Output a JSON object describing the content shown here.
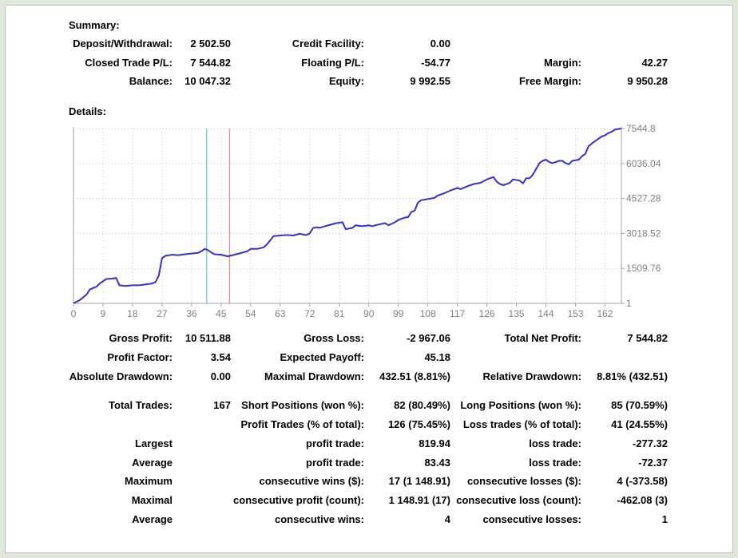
{
  "summary": {
    "heading": "Summary:",
    "rows": [
      [
        {
          "label": "Deposit/Withdrawal:",
          "value": "2 502.50"
        },
        {
          "label": "Credit Facility:",
          "value": "0.00"
        },
        {
          "label": "",
          "value": ""
        }
      ],
      [
        {
          "label": "Closed Trade P/L:",
          "value": "7 544.82"
        },
        {
          "label": "Floating P/L:",
          "value": "-54.77"
        },
        {
          "label": "Margin:",
          "value": "42.27"
        }
      ],
      [
        {
          "label": "Balance:",
          "value": "10 047.32"
        },
        {
          "label": "Equity:",
          "value": "9 992.55"
        },
        {
          "label": "Free Margin:",
          "value": "9 950.28"
        }
      ]
    ]
  },
  "details": {
    "heading": "Details:",
    "rows": [
      [
        {
          "label": "Gross Profit:",
          "value": "10 511.88"
        },
        {
          "label": "Gross Loss:",
          "value": "-2 967.06"
        },
        {
          "label": "Total Net Profit:",
          "value": "7 544.82"
        }
      ],
      [
        {
          "label": "Profit Factor:",
          "value": "3.54"
        },
        {
          "label": "Expected Payoff:",
          "value": "45.18"
        },
        {
          "label": "",
          "value": ""
        }
      ],
      [
        {
          "label": "Absolute Drawdown:",
          "value": "0.00"
        },
        {
          "label": "Maximal Drawdown:",
          "value": "432.51 (8.81%)"
        },
        {
          "label": "Relative Drawdown:",
          "value": "8.81% (432.51)"
        }
      ],
      [
        {
          "label": "Total Trades:",
          "value": "167"
        },
        {
          "label": "Short Positions (won %):",
          "value": "82 (80.49%)"
        },
        {
          "label": "Long Positions (won %):",
          "value": "85 (70.59%)"
        }
      ],
      [
        {
          "label": "",
          "value": ""
        },
        {
          "label": "Profit Trades (% of total):",
          "value": "126 (75.45%)"
        },
        {
          "label": "Loss trades (% of total):",
          "value": "41 (24.55%)"
        }
      ],
      [
        {
          "label": "Largest",
          "value": ""
        },
        {
          "label": "profit trade:",
          "value": "819.94"
        },
        {
          "label": "loss trade:",
          "value": "-277.32"
        }
      ],
      [
        {
          "label": "Average",
          "value": ""
        },
        {
          "label": "profit trade:",
          "value": "83.43"
        },
        {
          "label": "loss trade:",
          "value": "-72.37"
        }
      ],
      [
        {
          "label": "Maximum",
          "value": ""
        },
        {
          "label": "consecutive wins ($):",
          "value": "17 (1 148.91)"
        },
        {
          "label": "consecutive losses ($):",
          "value": "4 (-373.58)"
        }
      ],
      [
        {
          "label": "Maximal",
          "value": ""
        },
        {
          "label": "consecutive profit (count):",
          "value": "1 148.91 (17)"
        },
        {
          "label": "consecutive loss (count):",
          "value": "-462.08 (3)"
        }
      ],
      [
        {
          "label": "Average",
          "value": ""
        },
        {
          "label": "consecutive wins:",
          "value": "4"
        },
        {
          "label": "consecutive losses:",
          "value": "1"
        }
      ]
    ]
  },
  "chart_data": {
    "type": "line",
    "xlim": [
      0,
      167
    ],
    "ylim": [
      1,
      7544.8
    ],
    "x_ticks": [
      "0",
      "9",
      "18",
      "27",
      "36",
      "45",
      "54",
      "63",
      "72",
      "81",
      "90",
      "99",
      "108",
      "117",
      "126",
      "135",
      "144",
      "153",
      "162"
    ],
    "y_ticks": [
      "7544.8",
      "6036.04",
      "4527.28",
      "3018.52",
      "1509.76",
      "1"
    ],
    "line_color": "#3333cc",
    "markers": [
      {
        "x": 40.6,
        "color": "#69c3dd"
      },
      {
        "x": 47.6,
        "color": "#e08a8a"
      }
    ],
    "series": [
      {
        "points": [
          [
            0,
            1
          ],
          [
            2,
            150
          ],
          [
            4,
            380
          ],
          [
            5,
            600
          ],
          [
            7,
            720
          ],
          [
            8,
            860
          ],
          [
            10,
            1050
          ],
          [
            12,
            1070
          ],
          [
            13,
            1100
          ],
          [
            14,
            780
          ],
          [
            16,
            750
          ],
          [
            18,
            780
          ],
          [
            20,
            780
          ],
          [
            22,
            820
          ],
          [
            24,
            860
          ],
          [
            25,
            920
          ],
          [
            26,
            1200
          ],
          [
            27,
            1950
          ],
          [
            28,
            2050
          ],
          [
            30,
            2100
          ],
          [
            32,
            2080
          ],
          [
            34,
            2120
          ],
          [
            36,
            2150
          ],
          [
            38,
            2180
          ],
          [
            39,
            2250
          ],
          [
            40,
            2350
          ],
          [
            41,
            2300
          ],
          [
            42,
            2200
          ],
          [
            43,
            2120
          ],
          [
            45,
            2100
          ],
          [
            47,
            2030
          ],
          [
            49,
            2100
          ],
          [
            51,
            2170
          ],
          [
            53,
            2250
          ],
          [
            54,
            2350
          ],
          [
            56,
            2350
          ],
          [
            58,
            2420
          ],
          [
            59,
            2550
          ],
          [
            61,
            2900
          ],
          [
            63,
            2930
          ],
          [
            65,
            2950
          ],
          [
            67,
            2930
          ],
          [
            69,
            3000
          ],
          [
            70,
            2970
          ],
          [
            71,
            2950
          ],
          [
            72,
            3020
          ],
          [
            73,
            3250
          ],
          [
            74,
            3280
          ],
          [
            75,
            3260
          ],
          [
            76,
            3300
          ],
          [
            78,
            3380
          ],
          [
            80,
            3460
          ],
          [
            82,
            3500
          ],
          [
            83,
            3200
          ],
          [
            85,
            3260
          ],
          [
            86,
            3370
          ],
          [
            88,
            3330
          ],
          [
            90,
            3370
          ],
          [
            91,
            3330
          ],
          [
            92,
            3370
          ],
          [
            93,
            3400
          ],
          [
            95,
            3460
          ],
          [
            96,
            3370
          ],
          [
            98,
            3500
          ],
          [
            99,
            3600
          ],
          [
            101,
            3700
          ],
          [
            102,
            3720
          ],
          [
            103,
            3950
          ],
          [
            104,
            4000
          ],
          [
            105,
            4350
          ],
          [
            106,
            4450
          ],
          [
            108,
            4500
          ],
          [
            110,
            4550
          ],
          [
            111,
            4650
          ],
          [
            113,
            4750
          ],
          [
            115,
            4880
          ],
          [
            117,
            4980
          ],
          [
            118,
            4930
          ],
          [
            120,
            5050
          ],
          [
            122,
            5150
          ],
          [
            124,
            5200
          ],
          [
            126,
            5350
          ],
          [
            128,
            5450
          ],
          [
            129,
            5250
          ],
          [
            130,
            5150
          ],
          [
            131,
            5100
          ],
          [
            133,
            5200
          ],
          [
            134,
            5350
          ],
          [
            136,
            5300
          ],
          [
            137,
            5180
          ],
          [
            138,
            5400
          ],
          [
            139,
            5400
          ],
          [
            140,
            5550
          ],
          [
            141,
            5800
          ],
          [
            142,
            6050
          ],
          [
            143,
            6150
          ],
          [
            144,
            6200
          ],
          [
            145,
            6100
          ],
          [
            146,
            6050
          ],
          [
            148,
            6150
          ],
          [
            149,
            6150
          ],
          [
            150,
            6050
          ],
          [
            151,
            6000
          ],
          [
            152,
            6150
          ],
          [
            154,
            6200
          ],
          [
            155,
            6350
          ],
          [
            156,
            6450
          ],
          [
            157,
            6780
          ],
          [
            158,
            6900
          ],
          [
            159,
            7000
          ],
          [
            160,
            7100
          ],
          [
            161,
            7200
          ],
          [
            162,
            7250
          ],
          [
            163,
            7350
          ],
          [
            164,
            7400
          ],
          [
            165,
            7500
          ],
          [
            167,
            7544.8
          ]
        ]
      }
    ]
  }
}
